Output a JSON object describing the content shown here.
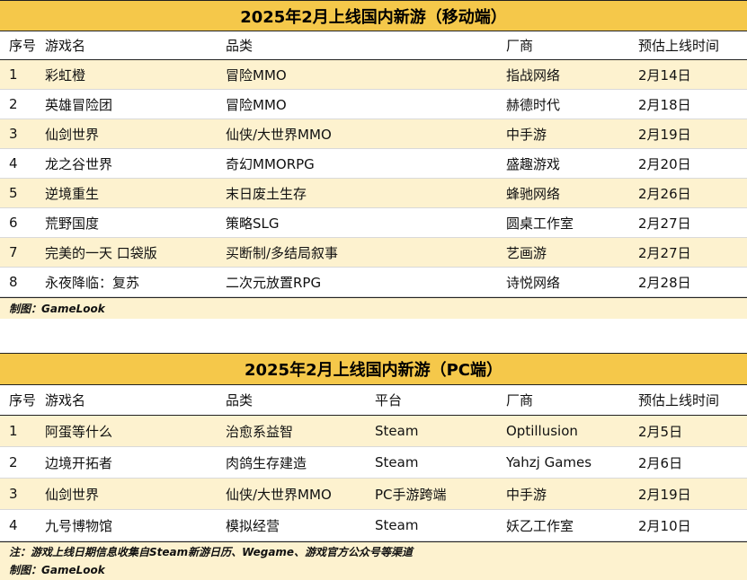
{
  "mobile": {
    "title": "2025年2月上线国内新游（移动端）",
    "headers": {
      "idx": "序号",
      "name": "游戏名",
      "genre": "品类",
      "vendor": "厂商",
      "date": "预估上线时间"
    },
    "rows": [
      {
        "idx": "1",
        "name": "彩虹橙",
        "genre": "冒险MMO",
        "vendor": "指战网络",
        "date": "2月14日"
      },
      {
        "idx": "2",
        "name": "英雄冒险团",
        "genre": "冒险MMO",
        "vendor": "赫德时代",
        "date": "2月18日"
      },
      {
        "idx": "3",
        "name": "仙剑世界",
        "genre": "仙侠/大世界MMO",
        "vendor": "中手游",
        "date": "2月19日"
      },
      {
        "idx": "4",
        "name": "龙之谷世界",
        "genre": "奇幻MMORPG",
        "vendor": "盛趣游戏",
        "date": "2月20日"
      },
      {
        "idx": "5",
        "name": "逆境重生",
        "genre": "末日废土生存",
        "vendor": "蜂驰网络",
        "date": "2月26日"
      },
      {
        "idx": "6",
        "name": "荒野国度",
        "genre": "策略SLG",
        "vendor": "圆桌工作室",
        "date": "2月27日"
      },
      {
        "idx": "7",
        "name": "完美的一天 口袋版",
        "genre": "买断制/多结局叙事",
        "vendor": "艺画游",
        "date": "2月27日"
      },
      {
        "idx": "8",
        "name": "永夜降临：复苏",
        "genre": "二次元放置RPG",
        "vendor": "诗悦网络",
        "date": "2月28日"
      }
    ],
    "credit": "制图：GameLook"
  },
  "pc": {
    "title": "2025年2月上线国内新游（PC端）",
    "headers": {
      "idx": "序号",
      "name": "游戏名",
      "genre": "品类",
      "platform": "平台",
      "vendor": "厂商",
      "date": "预估上线时间"
    },
    "rows": [
      {
        "idx": "1",
        "name": "阿蛋等什么",
        "genre": "治愈系益智",
        "platform": "Steam",
        "vendor": "Optillusion",
        "date": "2月5日"
      },
      {
        "idx": "2",
        "name": "边境开拓者",
        "genre": "肉鸽生存建造",
        "platform": "Steam",
        "vendor": "Yahzj Games",
        "date": "2月6日"
      },
      {
        "idx": "3",
        "name": "仙剑世界",
        "genre": "仙侠/大世界MMO",
        "platform": "PC手游跨端",
        "vendor": "中手游",
        "date": "2月19日"
      },
      {
        "idx": "4",
        "name": "九号博物馆",
        "genre": "模拟经营",
        "platform": "Steam",
        "vendor": "妖乙工作室",
        "date": "2月10日"
      }
    ],
    "note": "注：游戏上线日期信息收集自Steam新游日历、Wegame、游戏官方公众号等渠道",
    "credit": "制图：GameLook"
  }
}
